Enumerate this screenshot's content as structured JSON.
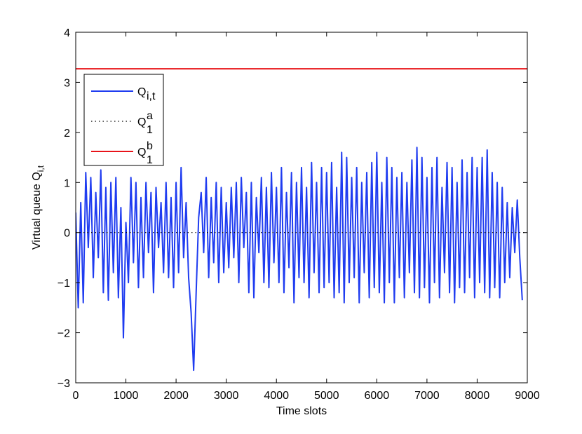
{
  "chart_data": {
    "type": "line",
    "xlabel": "Time slots",
    "ylabel": {
      "text": "Virtual queue Q",
      "subscript": "i,t"
    },
    "xlim": [
      0,
      9000
    ],
    "xticks": [
      0,
      1000,
      2000,
      3000,
      4000,
      5000,
      6000,
      7000,
      8000,
      9000
    ],
    "ylim": [
      -3,
      4
    ],
    "yticks": [
      -3,
      -2,
      -1,
      0,
      1,
      2,
      3,
      4
    ],
    "legend": "upper left",
    "series": [
      {
        "name": "Q",
        "subscript": "i,t",
        "color": "#1f3cf0",
        "style": "solid",
        "x": [
          0,
          50,
          100,
          150,
          200,
          250,
          300,
          350,
          400,
          450,
          500,
          550,
          600,
          650,
          700,
          750,
          800,
          850,
          900,
          950,
          1000,
          1050,
          1100,
          1150,
          1200,
          1250,
          1300,
          1350,
          1400,
          1450,
          1500,
          1550,
          1600,
          1650,
          1700,
          1750,
          1800,
          1850,
          1900,
          1950,
          2000,
          2050,
          2100,
          2150,
          2200,
          2250,
          2300,
          2350,
          2400,
          2450,
          2500,
          2550,
          2600,
          2650,
          2700,
          2750,
          2800,
          2850,
          2900,
          2950,
          3000,
          3050,
          3100,
          3150,
          3200,
          3250,
          3300,
          3350,
          3400,
          3450,
          3500,
          3550,
          3600,
          3650,
          3700,
          3750,
          3800,
          3850,
          3900,
          3950,
          4000,
          4050,
          4100,
          4150,
          4200,
          4250,
          4300,
          4350,
          4400,
          4450,
          4500,
          4550,
          4600,
          4650,
          4700,
          4750,
          4800,
          4850,
          4900,
          4950,
          5000,
          5050,
          5100,
          5150,
          5200,
          5250,
          5300,
          5350,
          5400,
          5450,
          5500,
          5550,
          5600,
          5650,
          5700,
          5750,
          5800,
          5850,
          5900,
          5950,
          6000,
          6050,
          6100,
          6150,
          6200,
          6250,
          6300,
          6350,
          6400,
          6450,
          6500,
          6550,
          6600,
          6650,
          6700,
          6750,
          6800,
          6850,
          6900,
          6950,
          7000,
          7050,
          7100,
          7150,
          7200,
          7250,
          7300,
          7350,
          7400,
          7450,
          7500,
          7550,
          7600,
          7650,
          7700,
          7750,
          7800,
          7850,
          7900,
          7950,
          8000,
          8050,
          8100,
          8150,
          8200,
          8250,
          8300,
          8350,
          8400,
          8450,
          8500,
          8550,
          8600,
          8650,
          8700,
          8750,
          8800,
          8850,
          8900
        ],
        "values": [
          0.4,
          -1.5,
          0.6,
          -1.4,
          1.2,
          -0.3,
          1.1,
          -0.9,
          0.8,
          -0.5,
          1.25,
          -1.2,
          0.9,
          -1.35,
          1.0,
          -0.8,
          1.1,
          -1.3,
          0.5,
          -2.1,
          0.2,
          -1.0,
          1.1,
          -0.6,
          1.0,
          -1.1,
          0.7,
          -0.9,
          1.0,
          -0.4,
          0.8,
          -1.2,
          0.9,
          -0.3,
          0.6,
          -0.8,
          1.0,
          -0.9,
          0.7,
          -1.1,
          1.0,
          -0.8,
          1.3,
          -0.5,
          0.6,
          -0.9,
          -1.6,
          -2.75,
          -1.2,
          0.3,
          0.8,
          -0.4,
          1.1,
          -0.9,
          0.7,
          -0.6,
          1.0,
          -1.0,
          0.9,
          -0.8,
          0.6,
          -0.7,
          0.9,
          -0.5,
          1.0,
          -1.0,
          1.1,
          -0.3,
          0.8,
          -1.2,
          1.0,
          -1.3,
          0.7,
          -0.4,
          1.1,
          -1.0,
          0.9,
          -1.1,
          1.2,
          -0.6,
          0.9,
          -1.0,
          1.3,
          -1.2,
          0.8,
          -0.7,
          1.2,
          -1.4,
          1.0,
          -0.9,
          1.3,
          -1.0,
          0.9,
          -1.3,
          1.4,
          -0.8,
          1.0,
          -1.2,
          1.3,
          -1.1,
          1.2,
          -1.0,
          1.4,
          -1.3,
          0.9,
          -1.2,
          1.6,
          -1.4,
          1.5,
          -1.0,
          1.1,
          -0.9,
          1.3,
          -1.4,
          1.0,
          -0.8,
          1.2,
          -1.3,
          1.4,
          -1.1,
          1.6,
          -1.2,
          1.0,
          -1.4,
          1.5,
          -1.0,
          1.3,
          -1.4,
          1.1,
          -0.9,
          1.2,
          -1.3,
          1.0,
          -0.8,
          1.45,
          -1.2,
          1.7,
          -1.3,
          1.5,
          -1.1,
          1.1,
          -1.4,
          1.3,
          -1.0,
          1.5,
          -1.3,
          0.9,
          -0.8,
          1.4,
          -1.2,
          1.3,
          -1.4,
          1.0,
          -1.1,
          1.45,
          -1.2,
          1.2,
          -0.9,
          1.5,
          -1.3,
          1.3,
          -1.0,
          1.5,
          -1.2,
          1.65,
          -1.3,
          1.2,
          -1.1,
          1.0,
          -1.3,
          0.9,
          -1.0,
          0.6,
          -0.9,
          0.5,
          -0.4,
          0.65,
          -0.5,
          -1.35
        ]
      },
      {
        "name": "Q",
        "subscript": "1",
        "superscript": "a",
        "color": "#000000",
        "style": "dotted",
        "x": [
          0,
          9000
        ],
        "values": [
          0,
          0
        ]
      },
      {
        "name": "Q",
        "subscript": "1",
        "superscript": "b",
        "color": "#e8141a",
        "style": "solid",
        "x": [
          0,
          9000
        ],
        "values": [
          3.27,
          3.27
        ]
      }
    ]
  }
}
